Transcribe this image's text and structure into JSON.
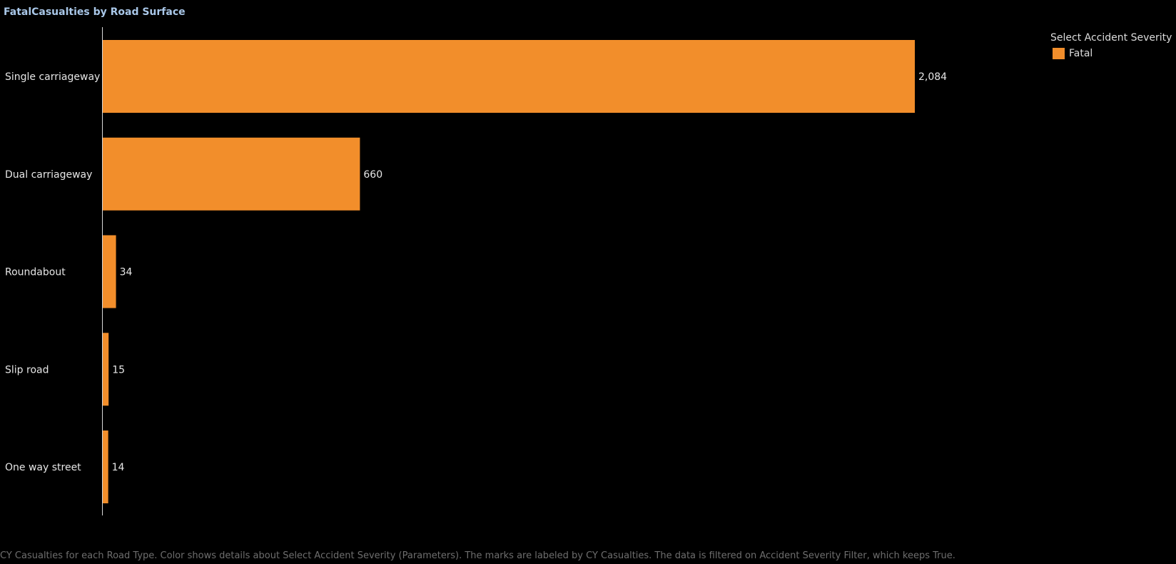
{
  "chart_data": {
    "type": "bar",
    "orientation": "horizontal",
    "title": "FatalCasualties by Road Surface",
    "categories": [
      "Single carriageway",
      "Dual carriageway",
      "Roundabout",
      "Slip road",
      "One way street"
    ],
    "series": [
      {
        "name": "Fatal",
        "values": [
          2084,
          660,
          34,
          15,
          14
        ],
        "color": "#f28e2b"
      }
    ],
    "data_labels": [
      "2,084",
      "660",
      "34",
      "15",
      "14"
    ],
    "xlim": [
      0,
      2300
    ],
    "grid": false,
    "legend": {
      "title": "Select Accident Severity",
      "placement": "top-right"
    }
  },
  "footer": "CY Casualties for each Road Type.  Color shows details about Select Accident Severity (Parameters).  The marks are labeled by CY Casualties. The data is filtered on Accident Severity Filter, which keeps True."
}
